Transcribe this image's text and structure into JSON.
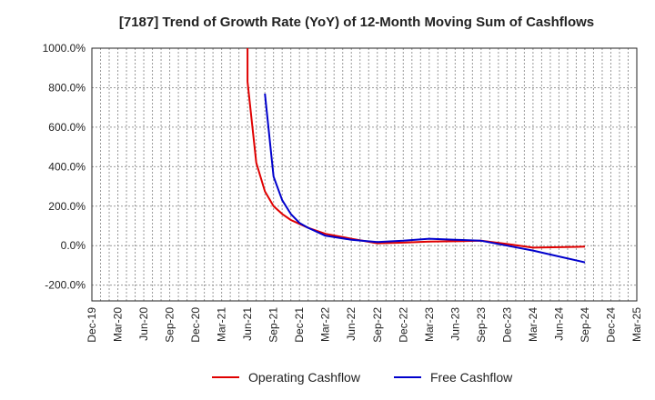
{
  "chart_data": {
    "type": "line",
    "title": "[7187]  Trend of Growth Rate (YoY) of 12-Month Moving Sum of Cashflows",
    "xlabel": "",
    "ylabel": "",
    "ylim": [
      -280,
      1000
    ],
    "yticks": [
      1000,
      800,
      600,
      400,
      200,
      0,
      -200
    ],
    "ytick_labels": [
      "1000.0%",
      "800.0%",
      "600.0%",
      "400.0%",
      "200.0%",
      "0.0%",
      "-200.0%"
    ],
    "x_tick_labels": [
      "Dec-19",
      "Mar-20",
      "Jun-20",
      "Sep-20",
      "Dec-20",
      "Mar-21",
      "Jun-21",
      "Sep-21",
      "Dec-21",
      "Mar-22",
      "Jun-22",
      "Sep-22",
      "Dec-22",
      "Mar-23",
      "Jun-23",
      "Sep-23",
      "Dec-23",
      "Mar-24",
      "Jun-24",
      "Sep-24",
      "Dec-24",
      "Mar-25"
    ],
    "grid": true,
    "legend_position": "bottom-center",
    "series": [
      {
        "name": "Operating Cashflow",
        "color": "#e00000",
        "points": [
          {
            "x": "Jun-21",
            "y": 1000
          },
          {
            "x": "Jun-21",
            "y": 830
          },
          {
            "x": "Jul-21",
            "y": 420
          },
          {
            "x": "Aug-21",
            "y": 275
          },
          {
            "x": "Sep-21",
            "y": 200
          },
          {
            "x": "Oct-21",
            "y": 160
          },
          {
            "x": "Nov-21",
            "y": 130
          },
          {
            "x": "Dec-21",
            "y": 110
          },
          {
            "x": "Jan-22",
            "y": 90
          },
          {
            "x": "Mar-22",
            "y": 60
          },
          {
            "x": "Jun-22",
            "y": 35
          },
          {
            "x": "Sep-22",
            "y": 12
          },
          {
            "x": "Dec-22",
            "y": 15
          },
          {
            "x": "Mar-23",
            "y": 20
          },
          {
            "x": "Jun-23",
            "y": 22
          },
          {
            "x": "Sep-23",
            "y": 25
          },
          {
            "x": "Dec-23",
            "y": 8
          },
          {
            "x": "Mar-24",
            "y": -10
          },
          {
            "x": "Jun-24",
            "y": -8
          },
          {
            "x": "Sep-24",
            "y": -5
          }
        ]
      },
      {
        "name": "Free Cashflow",
        "color": "#0000cc",
        "points": [
          {
            "x": "Aug-21",
            "y": 770
          },
          {
            "x": "Sep-21",
            "y": 350
          },
          {
            "x": "Oct-21",
            "y": 230
          },
          {
            "x": "Nov-21",
            "y": 160
          },
          {
            "x": "Dec-21",
            "y": 115
          },
          {
            "x": "Jan-22",
            "y": 90
          },
          {
            "x": "Mar-22",
            "y": 50
          },
          {
            "x": "Jun-22",
            "y": 30
          },
          {
            "x": "Sep-22",
            "y": 18
          },
          {
            "x": "Dec-22",
            "y": 25
          },
          {
            "x": "Mar-23",
            "y": 35
          },
          {
            "x": "Jun-23",
            "y": 30
          },
          {
            "x": "Sep-23",
            "y": 25
          },
          {
            "x": "Dec-23",
            "y": 0
          },
          {
            "x": "Mar-24",
            "y": -25
          },
          {
            "x": "Jun-24",
            "y": -55
          },
          {
            "x": "Sep-24",
            "y": -85
          }
        ]
      }
    ]
  }
}
